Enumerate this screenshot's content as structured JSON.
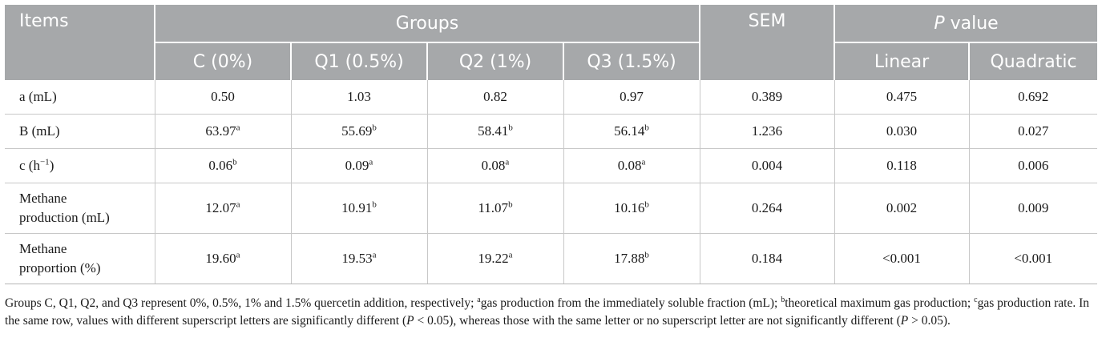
{
  "header": {
    "items": "Items",
    "groups": "Groups",
    "sem": "SEM",
    "pvalue_p": "P",
    "pvalue_rest": " value",
    "groups_sub": [
      "C (0%)",
      "Q1 (0.5%)",
      "Q2 (1%)",
      "Q3 (1.5%)"
    ],
    "pvalue_sub": [
      "Linear",
      "Quadratic"
    ]
  },
  "rows": [
    {
      "item_lines": [
        "a (mL)"
      ],
      "groups": [
        {
          "v": "0.50",
          "s": ""
        },
        {
          "v": "1.03",
          "s": ""
        },
        {
          "v": "0.82",
          "s": ""
        },
        {
          "v": "0.97",
          "s": ""
        }
      ],
      "sem": "0.389",
      "linear": "0.475",
      "quadratic": "0.692"
    },
    {
      "item_lines": [
        "B (mL)"
      ],
      "groups": [
        {
          "v": "63.97",
          "s": "a"
        },
        {
          "v": "55.69",
          "s": "b"
        },
        {
          "v": "58.41",
          "s": "b"
        },
        {
          "v": "56.14",
          "s": "b"
        }
      ],
      "sem": "1.236",
      "linear": "0.030",
      "quadratic": "0.027"
    },
    {
      "item_html_base": "c (h",
      "item_sup": "−1",
      "item_close": ")",
      "groups": [
        {
          "v": "0.06",
          "s": "b"
        },
        {
          "v": "0.09",
          "s": "a"
        },
        {
          "v": "0.08",
          "s": "a"
        },
        {
          "v": "0.08",
          "s": "a"
        }
      ],
      "sem": "0.004",
      "linear": "0.118",
      "quadratic": "0.006"
    },
    {
      "item_lines": [
        "Methane",
        "production (mL)"
      ],
      "groups": [
        {
          "v": "12.07",
          "s": "a"
        },
        {
          "v": "10.91",
          "s": "b"
        },
        {
          "v": "11.07",
          "s": "b"
        },
        {
          "v": "10.16",
          "s": "b"
        }
      ],
      "sem": "0.264",
      "linear": "0.002",
      "quadratic": "0.009"
    },
    {
      "item_lines": [
        "Methane",
        "proportion (%)"
      ],
      "groups": [
        {
          "v": "19.60",
          "s": "a"
        },
        {
          "v": "19.53",
          "s": "a"
        },
        {
          "v": "19.22",
          "s": "a"
        },
        {
          "v": "17.88",
          "s": "b"
        }
      ],
      "sem": "0.184",
      "linear": "<0.001",
      "quadratic": "<0.001"
    }
  ],
  "footnote": {
    "part1": "Groups C, Q1, Q2, and Q3 represent 0%, 0.5%, 1% and 1.5% quercetin addition, respectively; ",
    "sup_a": "a",
    "part2": "gas production from the immediately soluble fraction (mL); ",
    "sup_b": "b",
    "part3": "theoretical maximum gas production; ",
    "sup_c": "c",
    "part4": "gas production rate. In the same row, values with different superscript letters are significantly different (",
    "p1": "P",
    "part5": " < 0.05), whereas those with the same letter or no superscript letter are not significantly different (",
    "p2": "P",
    "part6": " > 0.05)."
  }
}
